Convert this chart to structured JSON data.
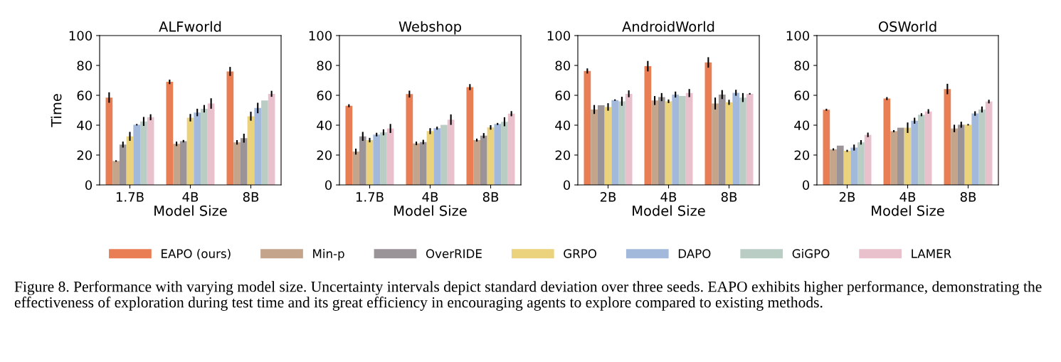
{
  "chart_data": [
    {
      "type": "bar",
      "title": "ALFworld",
      "xlabel": "Model Size",
      "ylabel": "Time",
      "categories": [
        "1.7B",
        "4B",
        "8B"
      ],
      "ylim": [
        0,
        100
      ],
      "yticks": [
        0,
        20,
        40,
        60,
        80,
        100
      ],
      "grid": false,
      "legend": "bottom",
      "annotations": [
        "Figure 8. Performance with varying model size. Uncertainty intervals depict standard deviation over three seeds. EAPO exhibits higher performance, demonstrating the effectiveness of exploration during test time and its great efficiency in encouraging agents to explore compared to existing methods."
      ],
      "series": [
        {
          "name": "EAPO (ours)",
          "color": "#e97e54",
          "values": [
            58.5,
            69,
            76
          ],
          "errors": [
            3.5,
            1.5,
            3
          ]
        },
        {
          "name": "Min-p",
          "color": "#c4a58c",
          "values": [
            16,
            27.5,
            28.5
          ],
          "errors": [
            0.5,
            1.5,
            1.5
          ]
        },
        {
          "name": "OverRIDE",
          "color": "#9a9398",
          "values": [
            27,
            29.3,
            31.3
          ],
          "errors": [
            2,
            0.8,
            3
          ]
        },
        {
          "name": "GRPO",
          "color": "#ebd27c",
          "values": [
            32.5,
            45,
            46
          ],
          "errors": [
            3,
            2.5,
            3
          ]
        },
        {
          "name": "DAPO",
          "color": "#a3b9db",
          "values": [
            40.3,
            48.5,
            51.5
          ],
          "errors": [
            0.5,
            2.5,
            3.5
          ]
        },
        {
          "name": "GiGPO",
          "color": "#b9cdc5",
          "values": [
            42.5,
            51,
            56.5
          ],
          "errors": [
            3,
            2.5,
            null
          ]
        },
        {
          "name": "LAMER",
          "color": "#e9c1cd",
          "values": [
            45.3,
            54.5,
            61
          ],
          "errors": [
            2,
            3.5,
            2
          ]
        }
      ]
    },
    {
      "type": "bar",
      "title": "Webshop",
      "xlabel": "Model Size",
      "categories": [
        "1.7B",
        "4B",
        "8B"
      ],
      "ylim": [
        0,
        100
      ],
      "yticks": [
        0,
        20,
        40,
        60,
        80,
        100
      ],
      "grid": false,
      "series": [
        {
          "color": "#e97e54",
          "values": [
            53,
            60.8,
            65.5
          ],
          "errors": [
            1,
            2.3,
            2
          ]
        },
        {
          "color": "#c4a58c",
          "values": [
            22.3,
            27.8,
            30
          ],
          "errors": [
            2,
            1.2,
            1
          ]
        },
        {
          "color": "#9a9398",
          "values": [
            32.5,
            28.7,
            33
          ],
          "errors": [
            3,
            1.5,
            1.7
          ]
        },
        {
          "color": "#ebd27c",
          "values": [
            30,
            36,
            38.5
          ],
          "errors": [
            1.5,
            2,
            1.5
          ]
        },
        {
          "color": "#a3b9db",
          "values": [
            33.7,
            38,
            40.8
          ],
          "errors": [
            1.2,
            1,
            0.7
          ]
        },
        {
          "color": "#b9cdc5",
          "values": [
            35.2,
            40.2,
            42.3
          ],
          "errors": [
            2,
            null,
            3
          ]
        },
        {
          "color": "#e9c1cd",
          "values": [
            37.8,
            43.7,
            47.7
          ],
          "errors": [
            3,
            3.5,
            1.7
          ]
        }
      ]
    },
    {
      "type": "bar",
      "title": "AndroidWorld",
      "xlabel": "Model Size",
      "categories": [
        "2B",
        "4B",
        "8B"
      ],
      "ylim": [
        0,
        100
      ],
      "yticks": [
        0,
        20,
        40,
        60,
        80,
        100
      ],
      "grid": false,
      "series": [
        {
          "color": "#e97e54",
          "values": [
            76.3,
            79.5,
            82
          ],
          "errors": [
            1.7,
            3.5,
            3.5
          ]
        },
        {
          "color": "#c4a58c",
          "values": [
            50.5,
            56.5,
            54.5
          ],
          "errors": [
            3,
            3,
            4
          ]
        },
        {
          "color": "#9a9398",
          "values": [
            53.3,
            58.8,
            60.5
          ],
          "errors": [
            null,
            2.7,
            3
          ]
        },
        {
          "color": "#ebd27c",
          "values": [
            52.2,
            56,
            55.3
          ],
          "errors": [
            2.5,
            1.2,
            1.7
          ]
        },
        {
          "color": "#a3b9db",
          "values": [
            56.8,
            60.5,
            61.7
          ],
          "errors": [
            0.5,
            2,
            2
          ]
        },
        {
          "color": "#b9cdc5",
          "values": [
            56,
            59.5,
            58.5
          ],
          "errors": [
            3,
            null,
            3
          ]
        },
        {
          "color": "#e9c1cd",
          "values": [
            61,
            61.5,
            61
          ],
          "errors": [
            2.3,
            2.7,
            0.5
          ]
        }
      ]
    },
    {
      "type": "bar",
      "title": "OSWorld",
      "xlabel": "Model Size",
      "categories": [
        "2B",
        "4B",
        "8B"
      ],
      "ylim": [
        0,
        100
      ],
      "yticks": [
        0,
        20,
        40,
        60,
        80,
        100
      ],
      "grid": false,
      "series": [
        {
          "color": "#e97e54",
          "values": [
            50.3,
            57.8,
            64.2
          ],
          "errors": [
            0.7,
            1,
            3.5
          ]
        },
        {
          "color": "#c4a58c",
          "values": [
            23.8,
            36,
            37.8
          ],
          "errors": [
            0.7,
            0.7,
            2.5
          ]
        },
        {
          "color": "#9a9398",
          "values": [
            26.3,
            38.3,
            40.3
          ],
          "errors": [
            null,
            null,
            2
          ]
        },
        {
          "color": "#ebd27c",
          "values": [
            22.8,
            38.3,
            40.3
          ],
          "errors": [
            0.7,
            3.5,
            0.5
          ]
        },
        {
          "color": "#a3b9db",
          "values": [
            25,
            43,
            47.8
          ],
          "errors": [
            2,
            2,
            1.5
          ]
        },
        {
          "color": "#b9cdc5",
          "values": [
            28.5,
            47,
            50.5
          ],
          "errors": [
            1.5,
            1,
            2
          ]
        },
        {
          "color": "#e9c1cd",
          "values": [
            33.5,
            49.2,
            55.8
          ],
          "errors": [
            1.5,
            1.5,
            1.2
          ]
        }
      ]
    }
  ]
}
